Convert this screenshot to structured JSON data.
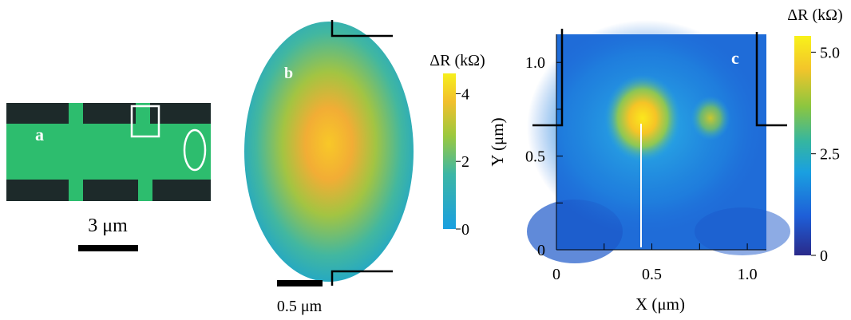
{
  "panels": {
    "a": {
      "label": "a",
      "scalebar_label": "3 μm"
    },
    "b": {
      "label": "b",
      "scalebar_label": "0.5 μm",
      "colorbar": {
        "title": "ΔR (kΩ)",
        "ticks": [
          "0",
          "2",
          "4"
        ],
        "range": [
          0,
          4.6
        ]
      }
    },
    "c": {
      "label": "c",
      "xlabel": "X (μm)",
      "ylabel": "Y (μm)",
      "x_ticks": [
        "0",
        "0.5",
        "1.0"
      ],
      "y_ticks": [
        "0",
        "0.5",
        "1.0"
      ],
      "colorbar": {
        "title": "ΔR (kΩ)",
        "ticks": [
          "0",
          "2.5",
          "5.0"
        ],
        "range": [
          0,
          5.4
        ]
      }
    }
  },
  "chart_data": {
    "type": "heatmap",
    "xlabel": "X (μm)",
    "ylabel": "Y (μm)",
    "xlim": [
      0,
      1.1
    ],
    "ylim": [
      0,
      1.15
    ],
    "x_ticks": [
      0,
      0.5,
      1.0
    ],
    "y_ticks": [
      0,
      0.5,
      1.0
    ],
    "value_range": [
      0,
      5.4
    ],
    "features": [
      {
        "x": 0.45,
        "y": 0.62,
        "value": 5.2
      },
      {
        "x": 0.8,
        "y": 0.62,
        "value": 3.8
      }
    ]
  },
  "colors": {
    "colormap": [
      "#2a2a8a",
      "#1e5fd8",
      "#1aa0e0",
      "#35b6a0",
      "#8cc63f",
      "#f3c52a",
      "#f8f21a"
    ],
    "device_green": "#2dbd6e",
    "substrate": "#1d2a2a"
  }
}
